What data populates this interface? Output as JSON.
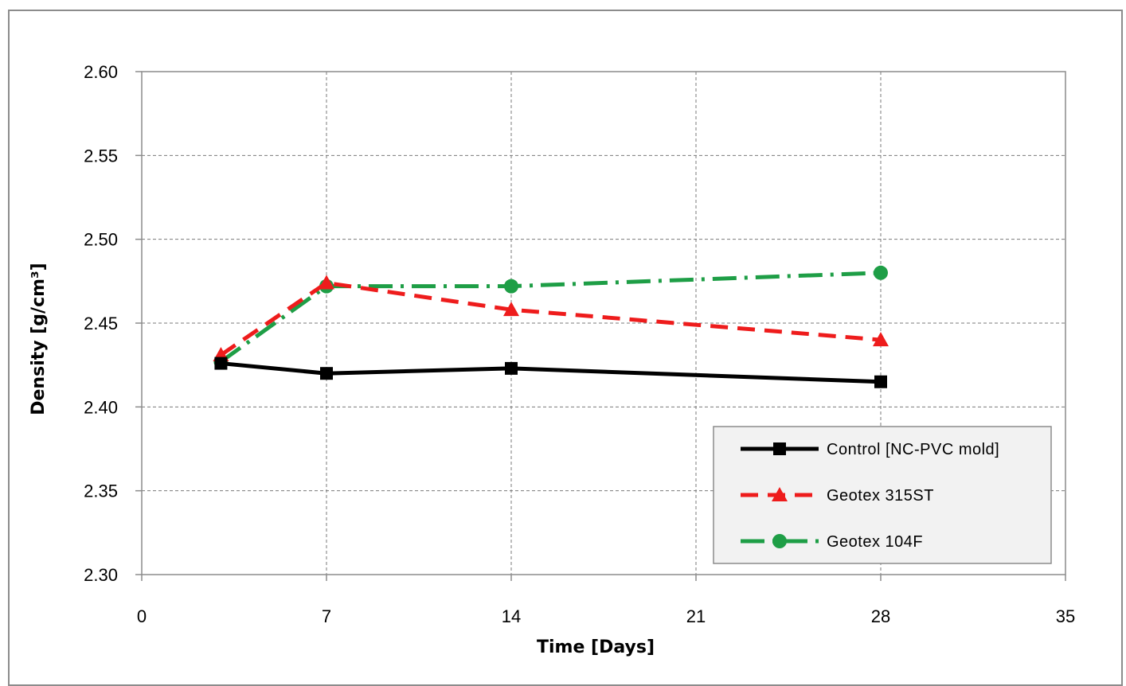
{
  "chart_data": {
    "type": "line",
    "title": "",
    "xlabel": "Time [Days]",
    "ylabel": "Density  [g/cm³]",
    "xlim": [
      0,
      35
    ],
    "ylim": [
      2.3,
      2.6
    ],
    "x_ticks": [
      "0",
      "7",
      "14",
      "21",
      "28",
      "35"
    ],
    "y_ticks": [
      "2.30",
      "2.35",
      "2.40",
      "2.45",
      "2.50",
      "2.55",
      "2.60"
    ],
    "grid": true,
    "legend_position": "bottom-right",
    "series": [
      {
        "name": "Control [NC-PVC mold]",
        "color": "#000000",
        "dash": "solid",
        "marker": "square",
        "x": [
          3,
          7,
          14,
          28
        ],
        "y": [
          2.426,
          2.42,
          2.423,
          2.415
        ]
      },
      {
        "name": "Geotex 315ST",
        "color": "#ee1c1c",
        "dash": "dashed",
        "marker": "triangle",
        "x": [
          3,
          7,
          14,
          28
        ],
        "y": [
          2.431,
          2.474,
          2.458,
          2.44
        ]
      },
      {
        "name": "Geotex 104F",
        "color": "#1e9e46",
        "dash": "dash-dot",
        "marker": "circle",
        "x": [
          3,
          7,
          14,
          28
        ],
        "y": [
          2.427,
          2.472,
          2.472,
          2.48
        ]
      }
    ]
  }
}
